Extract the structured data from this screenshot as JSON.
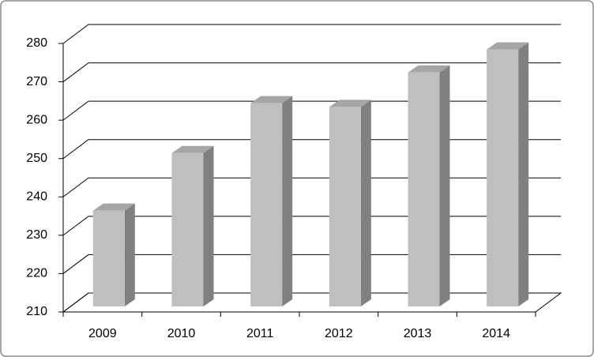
{
  "chart_data": {
    "type": "bar3d",
    "categories": [
      "2009",
      "2010",
      "2011",
      "2012",
      "2013",
      "2014"
    ],
    "values": [
      235,
      250,
      263,
      262,
      271,
      277
    ],
    "color": "#bfbfbf",
    "ylim": [
      210,
      280
    ],
    "yticks": [
      210,
      220,
      230,
      240,
      250,
      260,
      270,
      280
    ],
    "grid": true
  }
}
